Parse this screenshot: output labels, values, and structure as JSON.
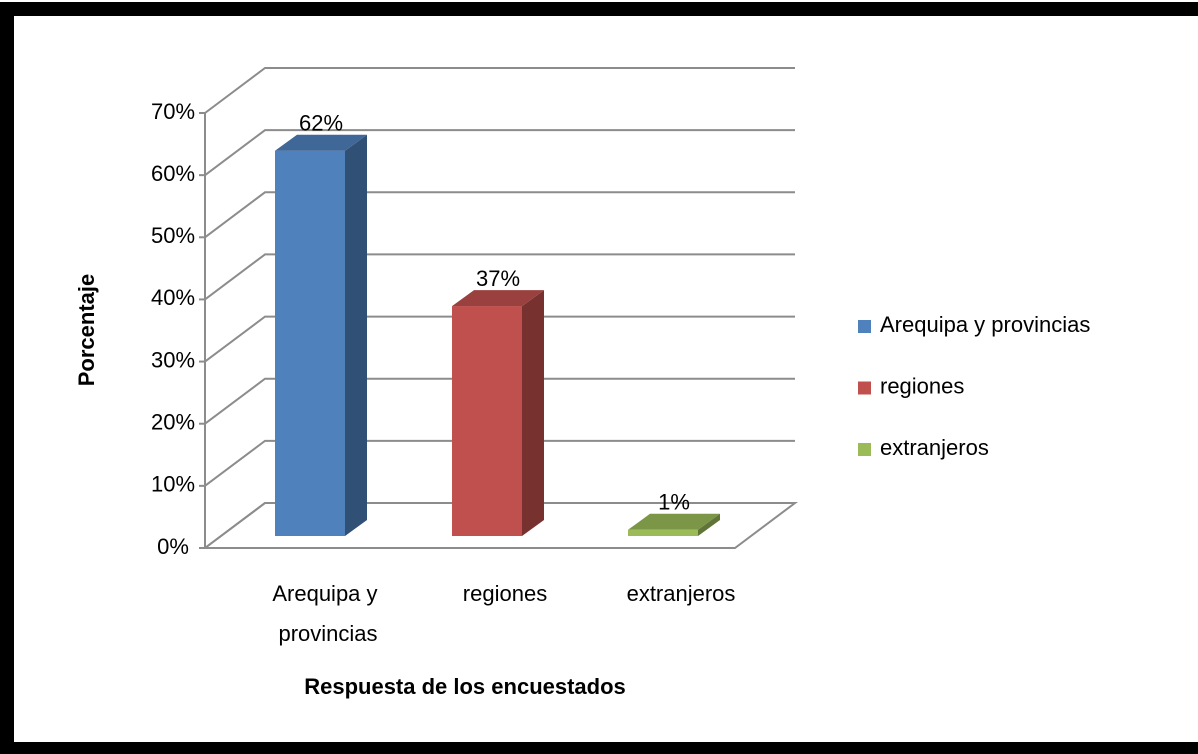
{
  "chart_data": {
    "type": "bar3d",
    "categories": [
      "Arequipa y provincias",
      "regiones",
      "extranjeros"
    ],
    "values": [
      62,
      37,
      1
    ],
    "value_labels": [
      "62%",
      "37%",
      "1%"
    ],
    "colors": [
      "#4f81bd",
      "#c0504d",
      "#9bbb59"
    ],
    "ylim": [
      0,
      70
    ],
    "yticks": [
      {
        "value": 0,
        "label": "0%"
      },
      {
        "value": 10,
        "label": "10%"
      },
      {
        "value": 20,
        "label": "20%"
      },
      {
        "value": 30,
        "label": "30%"
      },
      {
        "value": 40,
        "label": "40%"
      },
      {
        "value": 50,
        "label": "50%"
      },
      {
        "value": 60,
        "label": "60%"
      },
      {
        "value": 70,
        "label": "70%"
      }
    ],
    "y_label": "Porcentaje",
    "x_label": "Respuesta de los encuestados",
    "grid": true,
    "legend": "right"
  }
}
